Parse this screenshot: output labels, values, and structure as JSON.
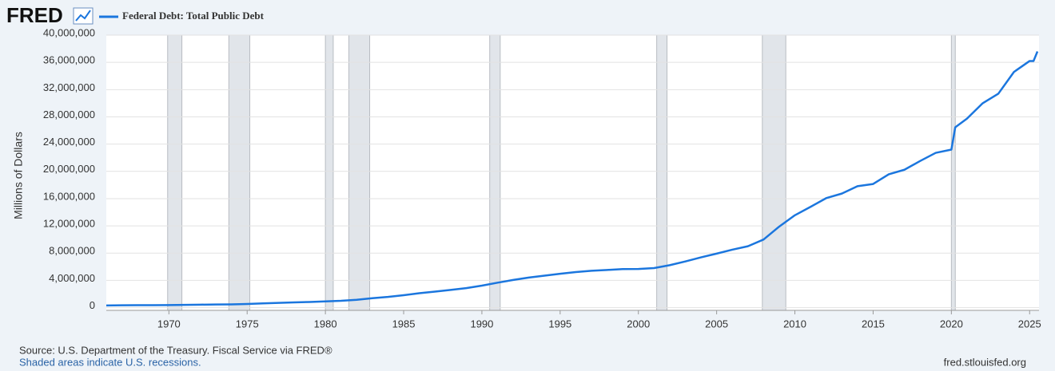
{
  "logo": "FRED",
  "chart_data": {
    "type": "line",
    "ylabel": "Millions of Dollars",
    "source": "Source: U.S. Department of the Treasury. Fiscal Service via FRED®",
    "note": "Shaded areas indicate U.S. recessions.",
    "site": "fred.stlouisfed.org",
    "x": [
      1966,
      1967,
      1968,
      1969,
      1970,
      1971,
      1972,
      1973,
      1974,
      1975,
      1976,
      1977,
      1978,
      1979,
      1980,
      1981,
      1982,
      1983,
      1984,
      1985,
      1986,
      1987,
      1988,
      1989,
      1990,
      1991,
      1992,
      1993,
      1994,
      1995,
      1996,
      1997,
      1998,
      1999,
      2000,
      2001,
      2002,
      2003,
      2004,
      2005,
      2006,
      2007,
      2008,
      2009,
      2010,
      2011,
      2012,
      2013,
      2014,
      2015,
      2016,
      2017,
      2018,
      2019,
      2020,
      2020.25,
      2021,
      2022,
      2023,
      2024,
      2025,
      2025.25,
      2025.5
    ],
    "series": [
      {
        "name": "Federal Debt: Total Public Debt",
        "color": "#1b76de",
        "values": [
          320000,
          340000,
          360000,
          365000,
          380000,
          410000,
          435000,
          465000,
          480000,
          540000,
          620000,
          700000,
          770000,
          830000,
          910000,
          1000000,
          1150000,
          1380000,
          1570000,
          1820000,
          2120000,
          2350000,
          2600000,
          2860000,
          3230000,
          3660000,
          4060000,
          4410000,
          4690000,
          4970000,
          5220000,
          5410000,
          5530000,
          5660000,
          5670000,
          5810000,
          6230000,
          6780000,
          7380000,
          7930000,
          8510000,
          9010000,
          10000000,
          11900000,
          13560000,
          14790000,
          16070000,
          16740000,
          17820000,
          18150000,
          19570000,
          20240000,
          21520000,
          22720000,
          23200000,
          26480000,
          27750000,
          30000000,
          31400000,
          34600000,
          36200000,
          36200000,
          37600000
        ]
      }
    ],
    "recessions": [
      [
        1969.92,
        1970.83
      ],
      [
        1973.83,
        1975.17
      ],
      [
        1980.0,
        1980.5
      ],
      [
        1981.5,
        1982.83
      ],
      [
        1990.5,
        1991.17
      ],
      [
        2001.17,
        2001.83
      ],
      [
        2007.92,
        2009.42
      ],
      [
        2020.0,
        2020.25
      ]
    ],
    "xlim": [
      1966,
      2025.6
    ],
    "xticks": [
      1970,
      1975,
      1980,
      1985,
      1990,
      1995,
      2000,
      2005,
      2010,
      2015,
      2020,
      2025
    ],
    "ylim": [
      -400000,
      40000000
    ],
    "yticks": [
      0,
      {
        "value": 4000000,
        "label": "4,000,000"
      },
      {
        "value": 8000000,
        "label": "8,000,000"
      },
      {
        "value": 12000000,
        "label": "12,000,000"
      },
      {
        "value": 16000000,
        "label": "16,000,000"
      },
      {
        "value": 20000000,
        "label": "20,000,000"
      },
      {
        "value": 24000000,
        "label": "24,000,000"
      },
      {
        "value": 28000000,
        "label": "28,000,000"
      },
      {
        "value": 32000000,
        "label": "32,000,000"
      },
      {
        "value": 36000000,
        "label": "36,000,000"
      },
      {
        "value": 40000000,
        "label": "40,000,000"
      }
    ],
    "grid": true
  }
}
